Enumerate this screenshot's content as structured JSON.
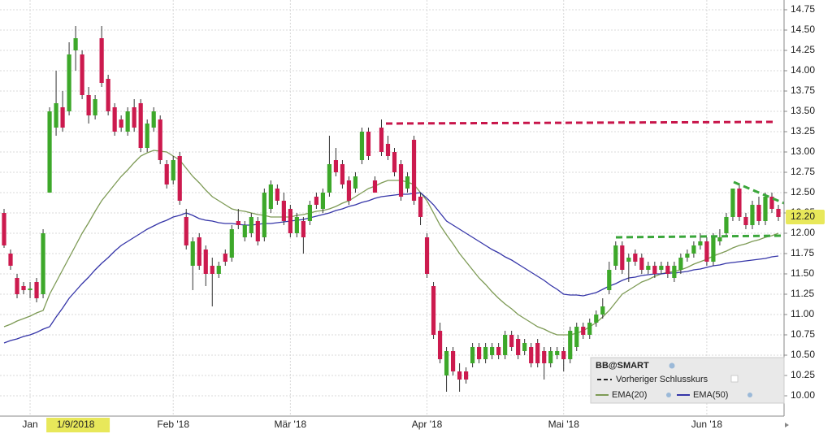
{
  "chart_data": {
    "type": "candlestick",
    "categories": [
      null,
      null,
      null,
      null,
      "Jan",
      null,
      null,
      null,
      null,
      null,
      null,
      "1/9/2018",
      null,
      null,
      null,
      null,
      null,
      null,
      null,
      null,
      null,
      null,
      null,
      null,
      null,
      null,
      "Feb '18",
      null,
      null,
      null,
      null,
      null,
      null,
      null,
      null,
      null,
      null,
      null,
      null,
      null,
      null,
      null,
      null,
      null,
      "Mär '18",
      null,
      null,
      null,
      null,
      null,
      null,
      null,
      null,
      null,
      null,
      null,
      null,
      null,
      null,
      null,
      null,
      null,
      null,
      null,
      null,
      "Apr '18",
      null,
      null,
      null,
      null,
      null,
      null,
      null,
      null,
      null,
      null,
      null,
      null,
      null,
      null,
      null,
      null,
      null,
      null,
      null,
      null,
      "Mai '18",
      null,
      null,
      null,
      null,
      null,
      null,
      null,
      null,
      null,
      null,
      null,
      null,
      null,
      null,
      null,
      null,
      null,
      null,
      null,
      null,
      null,
      "Jun '18",
      null,
      null,
      null,
      null,
      null,
      null,
      null,
      null,
      null,
      null,
      null
    ],
    "open": [
      12.25,
      11.75,
      11.45,
      11.35,
      11.3,
      11.4,
      11.25,
      12.5,
      13.3,
      13.55,
      13.5,
      14.25,
      14.2,
      13.7,
      13.45,
      14.4,
      13.9,
      13.55,
      13.4,
      13.25,
      13.55,
      13.6,
      13.05,
      13.3,
      13.4,
      12.85,
      12.65,
      12.95,
      12.2,
      11.6,
      11.95,
      11.8,
      11.6,
      11.5,
      11.75,
      11.7,
      12.15,
      11.95,
      12.0,
      12.15,
      11.95,
      12.3,
      12.55,
      12.4,
      12.3,
      12.0,
      12.15,
      12.15,
      12.45,
      12.3,
      12.5,
      12.9,
      12.85,
      12.65,
      12.55,
      12.9,
      13.25,
      12.65,
      13.3,
      13.1,
      13.0,
      12.85,
      12.55,
      13.15,
      12.45,
      11.95,
      11.35,
      10.8,
      10.25,
      10.55,
      10.3,
      10.3,
      10.4,
      10.6,
      10.45,
      10.5,
      10.6,
      10.5,
      10.75,
      10.7,
      10.55,
      10.6,
      10.65,
      10.55,
      10.4,
      10.5,
      10.55,
      10.45,
      10.6,
      10.85,
      10.75,
      10.9,
      11.0,
      11.3,
      11.6,
      11.85,
      11.65,
      11.75,
      11.7,
      11.55,
      11.6,
      11.55,
      11.6,
      11.45,
      11.55,
      11.7,
      11.75,
      11.85,
      11.9,
      11.65,
      11.9,
      12.0,
      12.2,
      12.55,
      12.2,
      12.1,
      12.35,
      12.15,
      12.45,
      12.3
    ],
    "high": [
      12.3,
      11.8,
      11.5,
      11.4,
      11.4,
      11.45,
      12.05,
      13.55,
      14.0,
      13.75,
      14.35,
      14.55,
      14.25,
      13.8,
      13.7,
      14.55,
      13.95,
      13.6,
      13.45,
      13.55,
      13.65,
      13.65,
      13.4,
      13.55,
      13.45,
      12.9,
      12.95,
      13.0,
      12.3,
      11.95,
      12.0,
      11.85,
      11.7,
      11.65,
      11.8,
      12.1,
      12.3,
      12.15,
      12.25,
      12.2,
      12.55,
      12.65,
      12.6,
      12.5,
      12.35,
      12.25,
      12.2,
      12.4,
      12.5,
      12.55,
      13.2,
      13.05,
      12.9,
      12.7,
      12.75,
      13.3,
      13.3,
      12.7,
      13.4,
      13.2,
      13.05,
      12.9,
      12.75,
      13.2,
      12.5,
      12.0,
      11.4,
      10.9,
      10.6,
      10.6,
      10.4,
      10.35,
      10.65,
      10.65,
      10.65,
      10.65,
      10.65,
      10.8,
      10.8,
      10.75,
      10.7,
      10.65,
      10.7,
      10.6,
      10.6,
      10.6,
      10.6,
      10.85,
      10.9,
      10.9,
      10.95,
      11.05,
      11.2,
      11.65,
      11.9,
      11.9,
      11.75,
      11.8,
      11.75,
      11.65,
      11.65,
      11.65,
      11.65,
      11.65,
      11.75,
      11.8,
      11.9,
      12.0,
      11.95,
      12.0,
      12.05,
      12.25,
      12.55,
      12.6,
      12.25,
      12.4,
      12.45,
      12.5,
      12.5,
      12.35
    ],
    "low": [
      11.82,
      11.55,
      11.2,
      11.25,
      11.2,
      11.15,
      11.2,
      12.5,
      13.2,
      13.25,
      13.45,
      14.0,
      13.65,
      13.35,
      13.4,
      13.8,
      13.45,
      13.2,
      13.25,
      13.2,
      13.25,
      13.0,
      13.0,
      13.25,
      12.85,
      12.55,
      12.6,
      12.35,
      11.8,
      11.3,
      11.55,
      11.35,
      11.1,
      11.45,
      11.6,
      11.65,
      12.05,
      11.9,
      11.95,
      11.85,
      11.9,
      12.25,
      12.35,
      12.1,
      11.95,
      11.95,
      11.75,
      12.1,
      12.3,
      12.25,
      12.45,
      12.7,
      12.55,
      12.35,
      12.5,
      12.85,
      12.9,
      12.5,
      12.95,
      12.9,
      12.7,
      12.4,
      12.5,
      12.35,
      12.1,
      11.45,
      10.7,
      10.4,
      10.05,
      10.25,
      10.05,
      10.15,
      10.35,
      10.4,
      10.4,
      10.45,
      10.45,
      10.45,
      10.55,
      10.45,
      10.5,
      10.35,
      10.35,
      10.2,
      10.35,
      10.45,
      10.3,
      10.4,
      10.55,
      10.7,
      10.7,
      10.85,
      10.95,
      11.25,
      11.55,
      11.5,
      11.4,
      11.6,
      11.5,
      11.5,
      11.45,
      11.5,
      11.45,
      11.4,
      11.5,
      11.65,
      11.7,
      11.8,
      11.6,
      11.6,
      11.85,
      11.95,
      12.15,
      12.15,
      12.05,
      12.05,
      12.1,
      12.1,
      12.25,
      12.15
    ],
    "close": [
      11.85,
      11.6,
      11.25,
      11.3,
      11.32,
      11.2,
      12.0,
      13.5,
      13.6,
      13.3,
      14.2,
      14.4,
      13.7,
      13.45,
      13.65,
      13.85,
      13.5,
      13.25,
      13.3,
      13.5,
      13.3,
      13.05,
      13.35,
      13.5,
      12.9,
      12.6,
      12.9,
      12.4,
      11.85,
      11.9,
      11.6,
      11.5,
      11.5,
      11.6,
      11.65,
      12.05,
      12.1,
      12.1,
      12.2,
      11.9,
      12.5,
      12.6,
      12.4,
      12.15,
      12.0,
      12.2,
      11.95,
      12.35,
      12.35,
      12.5,
      12.85,
      12.75,
      12.6,
      12.4,
      12.7,
      13.25,
      12.95,
      12.5,
      13.0,
      12.95,
      12.75,
      12.45,
      12.7,
      12.4,
      12.2,
      11.5,
      10.75,
      10.45,
      10.55,
      10.3,
      10.2,
      10.2,
      10.6,
      10.45,
      10.6,
      10.6,
      10.5,
      10.75,
      10.6,
      10.5,
      10.65,
      10.4,
      10.4,
      10.4,
      10.55,
      10.55,
      10.45,
      10.8,
      10.85,
      10.75,
      10.9,
      11.0,
      11.1,
      11.55,
      11.85,
      11.55,
      11.7,
      11.65,
      11.55,
      11.6,
      11.5,
      11.6,
      11.5,
      11.6,
      11.7,
      11.75,
      11.85,
      11.9,
      11.65,
      11.95,
      11.95,
      12.2,
      12.55,
      12.2,
      12.1,
      12.35,
      12.15,
      12.45,
      12.3,
      12.2
    ],
    "up_color": "#3da82a",
    "down_color": "#cc1a4e",
    "series": [
      {
        "name": "EMA(20)",
        "color": "#7d9a55",
        "values": [
          10.85,
          10.88,
          10.92,
          10.95,
          10.98,
          11.02,
          11.05,
          11.25,
          11.4,
          11.55,
          11.7,
          11.85,
          12.0,
          12.13,
          12.27,
          12.4,
          12.5,
          12.6,
          12.7,
          12.78,
          12.87,
          12.95,
          12.99,
          13.02,
          13.01,
          13.0,
          12.95,
          12.9,
          12.8,
          12.7,
          12.62,
          12.53,
          12.45,
          12.4,
          12.35,
          12.3,
          12.28,
          12.27,
          12.25,
          12.23,
          12.22,
          12.2,
          12.2,
          12.2,
          12.2,
          12.22,
          12.23,
          12.25,
          12.27,
          12.28,
          12.3,
          12.33,
          12.37,
          12.4,
          12.45,
          12.5,
          12.55,
          12.58,
          12.62,
          12.65,
          12.65,
          12.65,
          12.63,
          12.6,
          12.5,
          12.4,
          12.25,
          12.1,
          11.98,
          11.87,
          11.75,
          11.65,
          11.55,
          11.45,
          11.37,
          11.28,
          11.2,
          11.13,
          11.07,
          11.0,
          10.95,
          10.9,
          10.85,
          10.82,
          10.78,
          10.75,
          10.75,
          10.75,
          10.77,
          10.8,
          10.85,
          10.9,
          10.97,
          11.05,
          11.15,
          11.25,
          11.3,
          11.35,
          11.4,
          11.43,
          11.47,
          11.5,
          11.52,
          11.53,
          11.55,
          11.58,
          11.62,
          11.65,
          11.68,
          11.72,
          11.75,
          11.78,
          11.82,
          11.85,
          11.87,
          11.9,
          11.92,
          11.95,
          11.97,
          12.0
        ]
      },
      {
        "name": "EMA(50)",
        "color": "#3535a8",
        "values": [
          10.65,
          10.68,
          10.7,
          10.73,
          10.75,
          10.78,
          10.82,
          10.85,
          10.97,
          11.08,
          11.2,
          11.29,
          11.38,
          11.46,
          11.55,
          11.63,
          11.7,
          11.78,
          11.85,
          11.9,
          11.95,
          12.0,
          12.05,
          12.09,
          12.13,
          12.16,
          12.2,
          12.22,
          12.25,
          12.22,
          12.18,
          12.16,
          12.15,
          12.13,
          12.12,
          12.12,
          12.11,
          12.1,
          12.1,
          12.11,
          12.12,
          12.12,
          12.13,
          12.14,
          12.15,
          12.16,
          12.17,
          12.19,
          12.21,
          12.23,
          12.25,
          12.28,
          12.3,
          12.33,
          12.35,
          12.38,
          12.4,
          12.43,
          12.45,
          12.46,
          12.47,
          12.48,
          12.48,
          12.49,
          12.5,
          12.43,
          12.35,
          12.25,
          12.15,
          12.1,
          12.05,
          12.0,
          11.95,
          11.9,
          11.85,
          11.8,
          11.76,
          11.71,
          11.67,
          11.62,
          11.57,
          11.52,
          11.47,
          11.42,
          11.36,
          11.31,
          11.25,
          11.24,
          11.24,
          11.23,
          11.25,
          11.27,
          11.31,
          11.35,
          11.38,
          11.42,
          11.45,
          11.46,
          11.48,
          11.49,
          11.5,
          11.5,
          11.51,
          11.51,
          11.52,
          11.53,
          11.55,
          11.56,
          11.58,
          11.6,
          11.61,
          11.63,
          11.64,
          11.65,
          11.66,
          11.67,
          11.68,
          11.69,
          11.71,
          11.72
        ]
      }
    ],
    "ylim": [
      9.75,
      14.85
    ],
    "yticks": [
      {
        "value": 10,
        "label": "10.00"
      },
      {
        "value": 10.25,
        "label": "10.25"
      },
      {
        "value": 10.5,
        "label": "10.50"
      },
      {
        "value": 10.75,
        "label": "10.75"
      },
      {
        "value": 11,
        "label": "11.00"
      },
      {
        "value": 11.25,
        "label": "11.25"
      },
      {
        "value": 11.5,
        "label": "11.50"
      },
      {
        "value": 11.75,
        "label": "11.75"
      },
      {
        "value": 12,
        "label": "12.00"
      },
      {
        "value": 12.25,
        "label": "12.25"
      },
      {
        "value": 12.5,
        "label": "12.50"
      },
      {
        "value": 12.75,
        "label": "12.75"
      },
      {
        "value": 13,
        "label": "13.00"
      },
      {
        "value": 13.25,
        "label": "13.25"
      },
      {
        "value": 13.5,
        "label": "13.50"
      },
      {
        "value": 13.75,
        "label": "13.75"
      },
      {
        "value": 14,
        "label": "14.00"
      },
      {
        "value": 14.25,
        "label": "14.25"
      },
      {
        "value": 14.5,
        "label": "14.50"
      },
      {
        "value": 14.75,
        "label": "14.75"
      }
    ],
    "last_price": {
      "value": 12.2,
      "label": "12.20"
    },
    "grid": true,
    "legend_title": "BB@SMART",
    "previous_close_label": "Vorheriger Schlusskurs"
  }
}
